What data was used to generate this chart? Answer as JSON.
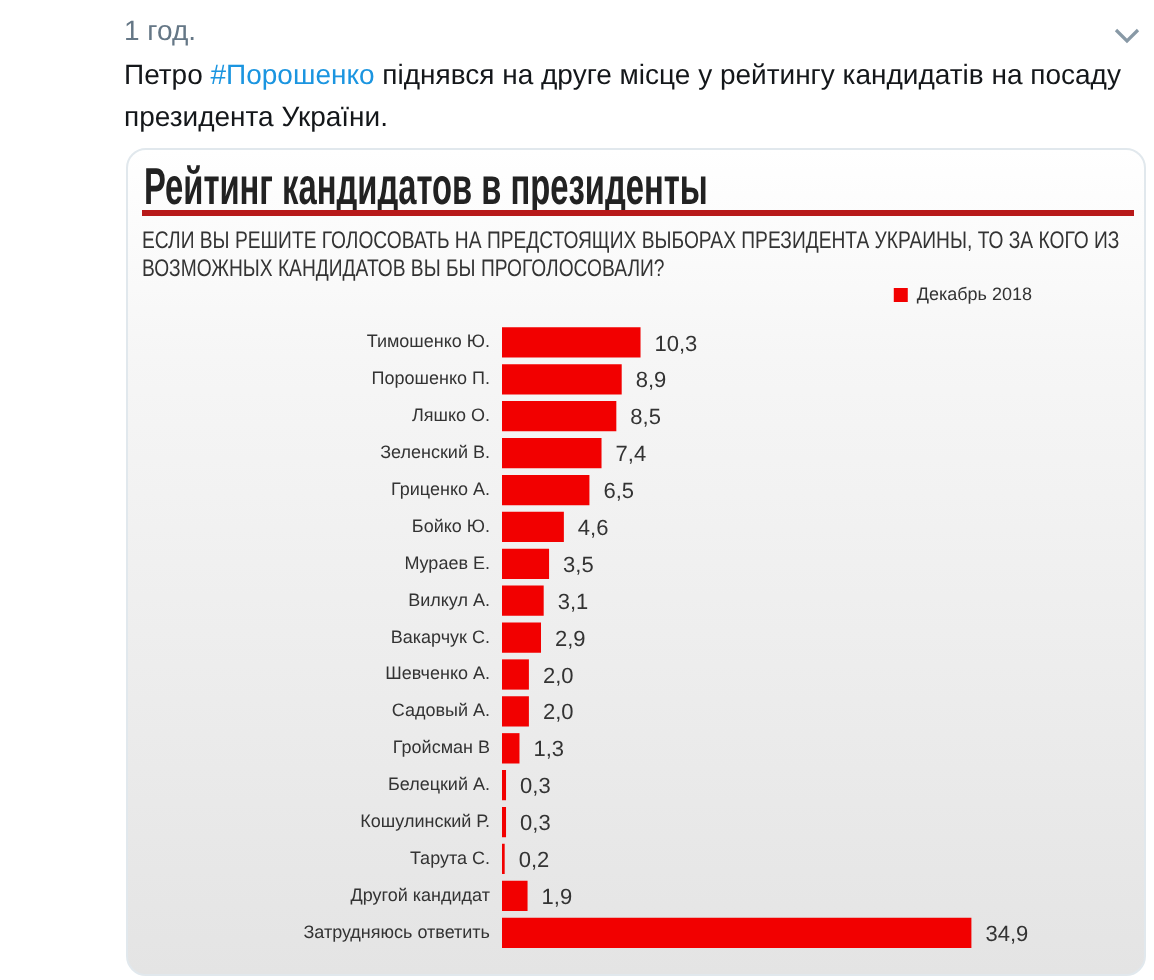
{
  "chart_data": {
    "type": "bar",
    "orientation": "horizontal",
    "title": "Рейтинг кандидатов в президенты",
    "subtitle": "ЕСЛИ ВЫ РЕШИТЕ ГОЛОСОВАТЬ НА ПРЕДСТОЯЩИХ ВЫБОРАХ ПРЕЗИДЕНТА УКРАИНЫ, ТО ЗА КОГО ИЗ ВОЗМОЖНЫХ КАНДИДАТОВ ВЫ БЫ ПРОГОЛОСОВАЛИ?",
    "annotations": [
      "1 год.",
      "Петро #Порошенко піднявся на друге місце у рейтингу кандидатів на посаду президента України."
    ],
    "categories": [
      "Тимошенко Ю.",
      "Порошенко П.",
      "Ляшко О.",
      "Зеленский В.",
      "Гриценко А.",
      "Бойко Ю.",
      "Мураев Е.",
      "Вилкул А.",
      "Вакарчук С.",
      "Шевченко А.",
      "Садовый А.",
      "Гройсман В",
      "Белецкий А.",
      "Кошулинский Р.",
      "Тарута С.",
      "Другой кандидат",
      "Затрудняюсь ответить"
    ],
    "series": [
      {
        "name": "Декабрь 2018",
        "color": "#f20000",
        "values": [
          10.3,
          8.9,
          8.5,
          7.4,
          6.5,
          4.6,
          3.5,
          3.1,
          2.9,
          2.0,
          2.0,
          1.3,
          0.3,
          0.3,
          0.2,
          1.9,
          34.9
        ],
        "value_labels": [
          "10,3",
          "8,9",
          "8,5",
          "7,4",
          "6,5",
          "4,6",
          "3,5",
          "3,1",
          "2,9",
          "2,0",
          "2,0",
          "1,3",
          "0,3",
          "0,3",
          "0,2",
          "1,9",
          "34,9"
        ]
      }
    ],
    "legend": "top right",
    "tick_labels": "y",
    "grid": false
  }
}
